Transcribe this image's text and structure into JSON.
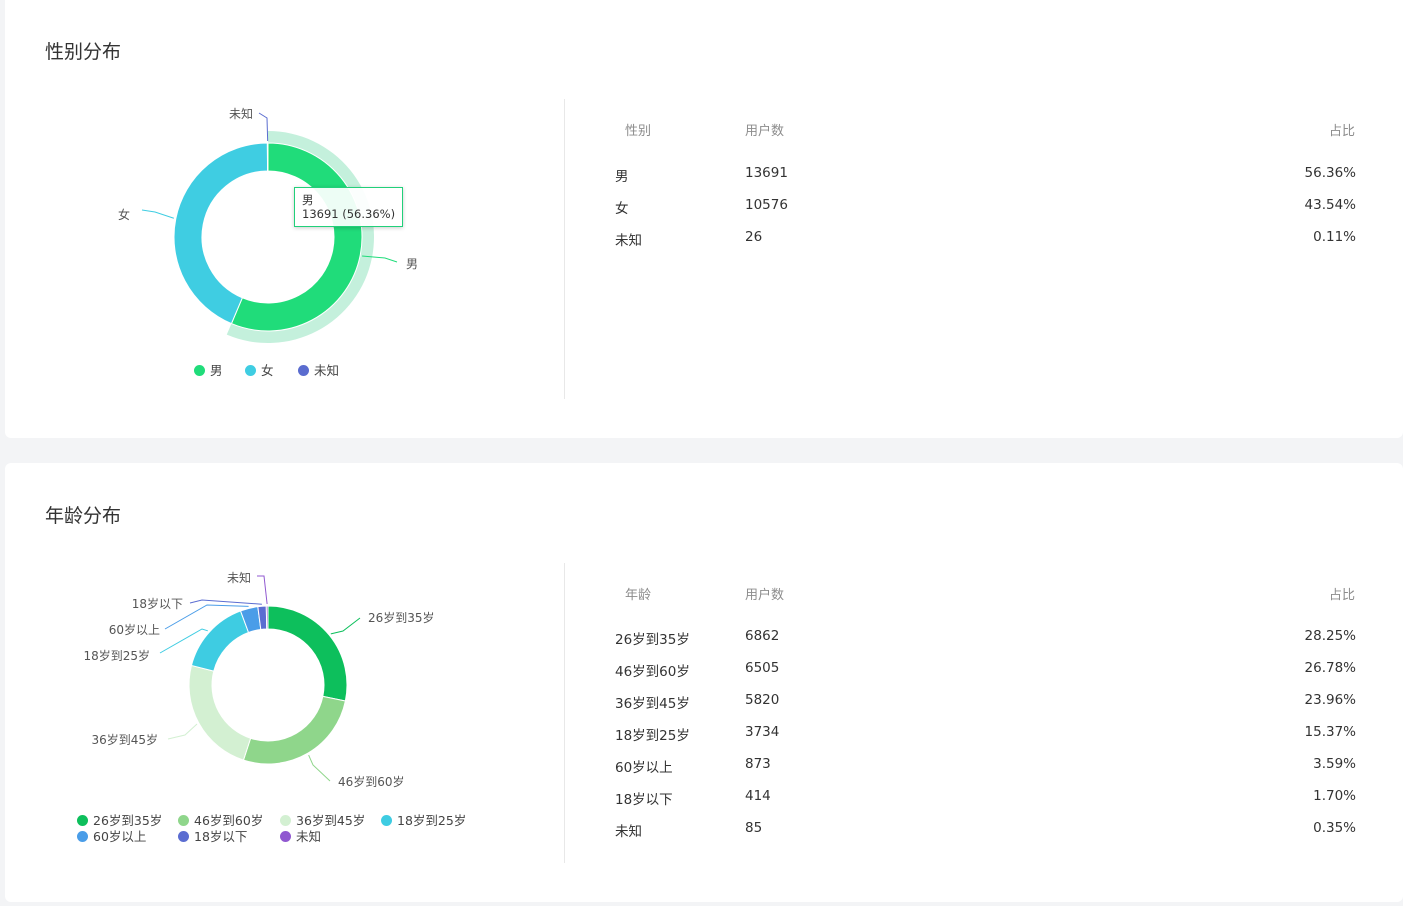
{
  "gender": {
    "title": "性别分布",
    "colors": [
      "#20dc7a",
      "#3fcde2",
      "#5a6ccf"
    ],
    "hover_color": "#c4f0dc",
    "chart_data": {
      "type": "pie",
      "categories": [
        "男",
        "女",
        "未知"
      ],
      "values": [
        13691,
        10576,
        26
      ]
    },
    "tooltip": {
      "name": "男",
      "value": "13691 (56.36%)"
    },
    "legend": [
      "男",
      "女",
      "未知"
    ],
    "table": {
      "headers": [
        "性别",
        "用户数",
        "占比"
      ],
      "rows": [
        [
          "男",
          "13691",
          "56.36%"
        ],
        [
          "女",
          "10576",
          "43.54%"
        ],
        [
          "未知",
          "26",
          "0.11%"
        ]
      ]
    }
  },
  "age": {
    "title": "年龄分布",
    "colors": [
      "#0dbf5c",
      "#8fd68b",
      "#d3f0d2",
      "#3ecce2",
      "#4a9de8",
      "#5b6dd1",
      "#9058d0"
    ],
    "chart_data": {
      "type": "pie",
      "categories": [
        "26岁到35岁",
        "46岁到60岁",
        "36岁到45岁",
        "18岁到25岁",
        "60岁以上",
        "18岁以下",
        "未知"
      ],
      "values": [
        6862,
        6505,
        5820,
        3734,
        873,
        414,
        85
      ]
    },
    "legend": [
      "26岁到35岁",
      "46岁到60岁",
      "36岁到45岁",
      "18岁到25岁",
      "60岁以上",
      "18岁以下",
      "未知"
    ],
    "table": {
      "headers": [
        "年龄",
        "用户数",
        "占比"
      ],
      "rows": [
        [
          "26岁到35岁",
          "6862",
          "28.25%"
        ],
        [
          "46岁到60岁",
          "6505",
          "26.78%"
        ],
        [
          "36岁到45岁",
          "5820",
          "23.96%"
        ],
        [
          "18岁到25岁",
          "3734",
          "15.37%"
        ],
        [
          "60岁以上",
          "873",
          "3.59%"
        ],
        [
          "18岁以下",
          "414",
          "1.70%"
        ],
        [
          "未知",
          "85",
          "0.35%"
        ]
      ]
    }
  }
}
